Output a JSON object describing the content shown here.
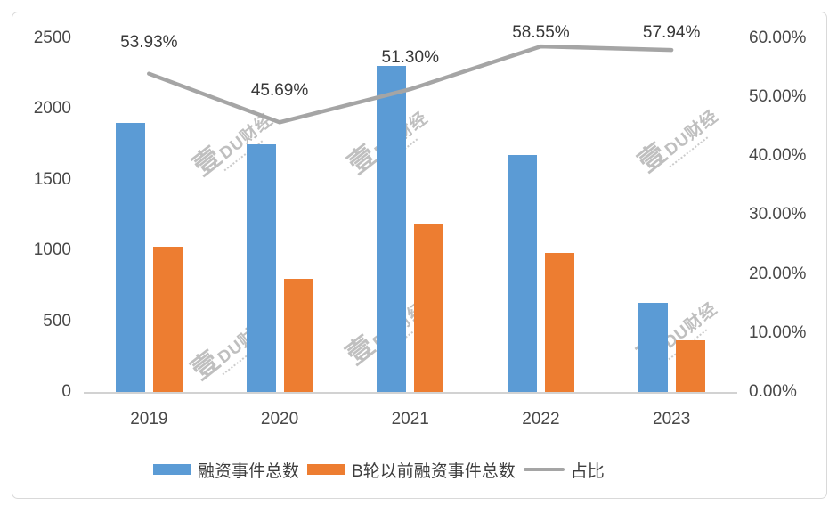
{
  "chart_data": {
    "type": "bar",
    "title": "",
    "categories": [
      "2019",
      "2020",
      "2021",
      "2022",
      "2023"
    ],
    "series": [
      {
        "name": "融资事件总数",
        "type": "bar",
        "axis": "left",
        "color": "#5B9BD5",
        "values": [
          1897,
          1751,
          2300,
          1672,
          630
        ]
      },
      {
        "name": "B轮以前融资事件总数",
        "type": "bar",
        "axis": "left",
        "color": "#ED7D31",
        "values": [
          1023,
          800,
          1180,
          979,
          365
        ]
      },
      {
        "name": "占比",
        "type": "line",
        "axis": "right",
        "color": "#A5A5A5",
        "values": [
          53.93,
          45.69,
          51.3,
          58.55,
          57.94
        ],
        "data_labels": [
          "53.93%",
          "45.69%",
          "51.30%",
          "58.55%",
          "57.94%"
        ]
      }
    ],
    "left_axis": {
      "min": 0,
      "max": 2500,
      "step": 500,
      "tick_labels": [
        "2500",
        "2000",
        "1500",
        "1000",
        "500",
        "0"
      ]
    },
    "right_axis": {
      "min": 0,
      "max": 60,
      "step": 10,
      "tick_labels": [
        "60.00%",
        "50.00%",
        "40.00%",
        "30.00%",
        "20.00%",
        "10.00%",
        "0.00%"
      ]
    },
    "legend_position": "bottom",
    "grid": false,
    "xlabel": "",
    "ylabel": ""
  },
  "legend": {
    "items": [
      {
        "label": "融资事件总数",
        "swatch": "bar",
        "color": "#5B9BD5"
      },
      {
        "label": "B轮以前融资事件总数",
        "swatch": "bar",
        "color": "#ED7D31"
      },
      {
        "label": "占比",
        "swatch": "line",
        "color": "#A5A5A5"
      }
    ]
  },
  "watermark": {
    "text": "壹DU财经",
    "lead_char": "壹",
    "rest": "DU财经"
  },
  "colors": {
    "bar_blue": "#5B9BD5",
    "bar_orange": "#ED7D31",
    "line_gray": "#A5A5A5",
    "axis_text": "#484848",
    "axis_line": "#D2D2D2",
    "frame_border": "#D9D9D9",
    "background": "#FFFFFF"
  }
}
